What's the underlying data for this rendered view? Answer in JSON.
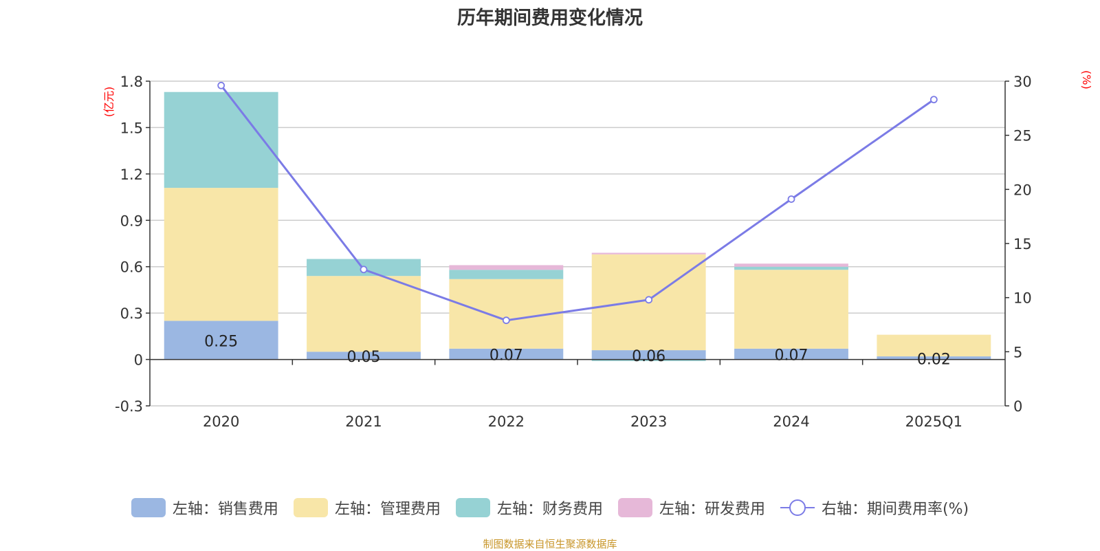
{
  "title": "历年期间费用变化情况",
  "source": "制图数据来自恒生聚源数据库",
  "chart_data": {
    "type": "bar",
    "stacked": true,
    "categories": [
      "2020",
      "2021",
      "2022",
      "2023",
      "2024",
      "2025Q1"
    ],
    "left_axis": {
      "unit": "(亿元)",
      "ylim": [
        -0.3,
        1.8
      ],
      "ticks": [
        "-0.3",
        "0",
        "0.3",
        "0.6",
        "0.9",
        "1.2",
        "1.5",
        "1.8"
      ]
    },
    "right_axis": {
      "unit": "(%)",
      "ylim": [
        0,
        30
      ],
      "ticks": [
        "0",
        "5",
        "10",
        "15",
        "20",
        "25",
        "30"
      ]
    },
    "grid": true,
    "legend_position": "bottom",
    "series": [
      {
        "name": "左轴：销售费用",
        "axis": "left",
        "type": "bar",
        "color": "#9bb7e2",
        "values": [
          0.25,
          0.05,
          0.07,
          0.06,
          0.07,
          0.02
        ],
        "labels": [
          "0.25",
          "0.05",
          "0.07",
          "0.06",
          "0.07",
          "0.02"
        ]
      },
      {
        "name": "左轴：管理费用",
        "axis": "left",
        "type": "bar",
        "color": "#f8e6a8",
        "values": [
          0.86,
          0.49,
          0.45,
          0.62,
          0.51,
          0.14
        ]
      },
      {
        "name": "左轴：财务费用",
        "axis": "left",
        "type": "bar",
        "color": "#96d2d4",
        "values": [
          0.62,
          0.11,
          0.06,
          -0.01,
          0.02,
          0.0
        ]
      },
      {
        "name": "左轴：研发费用",
        "axis": "left",
        "type": "bar",
        "color": "#e6b8d8",
        "values": [
          0.0,
          0.0,
          0.03,
          0.01,
          0.02,
          0.0
        ]
      },
      {
        "name": "右轴：期间费用率(%)",
        "axis": "right",
        "type": "line",
        "color": "#7b7be6",
        "values": [
          29.6,
          12.6,
          7.9,
          9.8,
          19.1,
          28.3
        ]
      }
    ]
  }
}
